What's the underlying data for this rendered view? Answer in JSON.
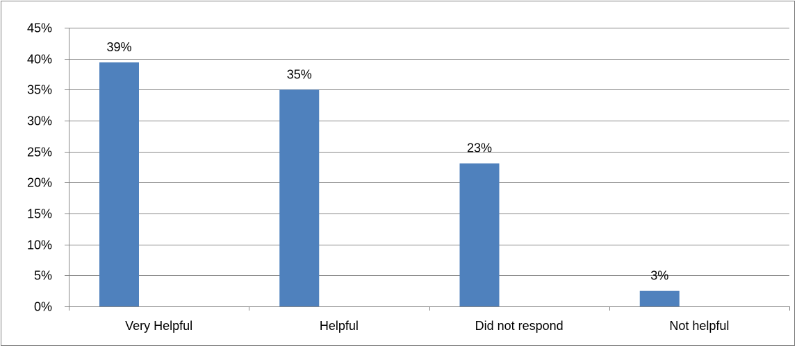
{
  "chart_data": {
    "type": "bar",
    "categories": [
      "Very Helpful",
      "Helpful",
      "Did not respond",
      "Not helpful"
    ],
    "values": [
      39.4,
      35.0,
      23.1,
      2.5
    ],
    "data_labels": [
      "39%",
      "35%",
      "23%",
      "3%"
    ],
    "title": "",
    "xlabel": "",
    "ylabel": "",
    "ylim": [
      0,
      45
    ],
    "ytick_values": [
      0,
      5,
      10,
      15,
      20,
      25,
      30,
      35,
      40,
      45
    ],
    "ytick_labels": [
      "0%",
      "5%",
      "10%",
      "15%",
      "20%",
      "25%",
      "30%",
      "35%",
      "40%",
      "45%"
    ],
    "grid": true,
    "legend": "none",
    "bar_color": "#4f81bd",
    "grid_color": "#868686"
  }
}
